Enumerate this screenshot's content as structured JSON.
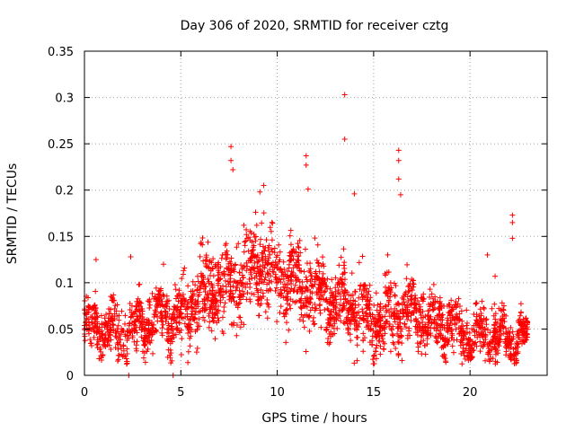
{
  "chart_data": {
    "type": "scatter",
    "title": "Day 306 of 2020, SRMTID for receiver cztg",
    "xlabel": "GPS time / hours",
    "ylabel": "SRMTID / TECUs",
    "xlim": [
      0,
      24
    ],
    "ylim": [
      0,
      0.35
    ],
    "xticks": [
      0,
      5,
      10,
      15,
      20
    ],
    "xtick_labels": [
      "0",
      "5",
      "10",
      "15",
      "20"
    ],
    "yticks": [
      0,
      0.05,
      0.1,
      0.15,
      0.2,
      0.25,
      0.3,
      0.35
    ],
    "ytick_labels": [
      "0",
      "0.05",
      "0.1",
      "0.15",
      "0.2",
      "0.25",
      "0.3",
      "0.35"
    ],
    "grid": true,
    "marker": "plus",
    "color": "#ff0000",
    "point_count_estimate": 3000,
    "envelope": {
      "hours": [
        0,
        1,
        2,
        3,
        4,
        5,
        6,
        7,
        8,
        9,
        10,
        11,
        12,
        13,
        14,
        15,
        16,
        17,
        18,
        19,
        20,
        21,
        22,
        23
      ],
      "typical": [
        0.055,
        0.05,
        0.045,
        0.055,
        0.065,
        0.06,
        0.085,
        0.095,
        0.1,
        0.12,
        0.11,
        0.095,
        0.09,
        0.08,
        0.075,
        0.06,
        0.065,
        0.07,
        0.06,
        0.055,
        0.04,
        0.045,
        0.04,
        0.04
      ],
      "spread": [
        0.02,
        0.025,
        0.025,
        0.025,
        0.025,
        0.03,
        0.035,
        0.04,
        0.04,
        0.04,
        0.035,
        0.035,
        0.035,
        0.035,
        0.035,
        0.03,
        0.03,
        0.03,
        0.025,
        0.025,
        0.02,
        0.025,
        0.02,
        0.015
      ]
    },
    "outliers": [
      {
        "x": 0.6,
        "y": 0.125
      },
      {
        "x": 2.4,
        "y": 0.128
      },
      {
        "x": 4.1,
        "y": 0.12
      },
      {
        "x": 7.6,
        "y": 0.247
      },
      {
        "x": 7.6,
        "y": 0.232
      },
      {
        "x": 7.7,
        "y": 0.222
      },
      {
        "x": 9.3,
        "y": 0.205
      },
      {
        "x": 9.1,
        "y": 0.198
      },
      {
        "x": 11.5,
        "y": 0.237
      },
      {
        "x": 11.5,
        "y": 0.227
      },
      {
        "x": 11.6,
        "y": 0.201
      },
      {
        "x": 13.5,
        "y": 0.303
      },
      {
        "x": 13.5,
        "y": 0.255
      },
      {
        "x": 14.0,
        "y": 0.196
      },
      {
        "x": 16.3,
        "y": 0.243
      },
      {
        "x": 16.3,
        "y": 0.232
      },
      {
        "x": 16.3,
        "y": 0.212
      },
      {
        "x": 16.4,
        "y": 0.195
      },
      {
        "x": 20.9,
        "y": 0.13
      },
      {
        "x": 21.3,
        "y": 0.107
      },
      {
        "x": 22.2,
        "y": 0.173
      },
      {
        "x": 22.2,
        "y": 0.165
      },
      {
        "x": 22.2,
        "y": 0.148
      },
      {
        "x": 2.3,
        "y": 0.0
      },
      {
        "x": 4.6,
        "y": 0.0
      }
    ]
  }
}
